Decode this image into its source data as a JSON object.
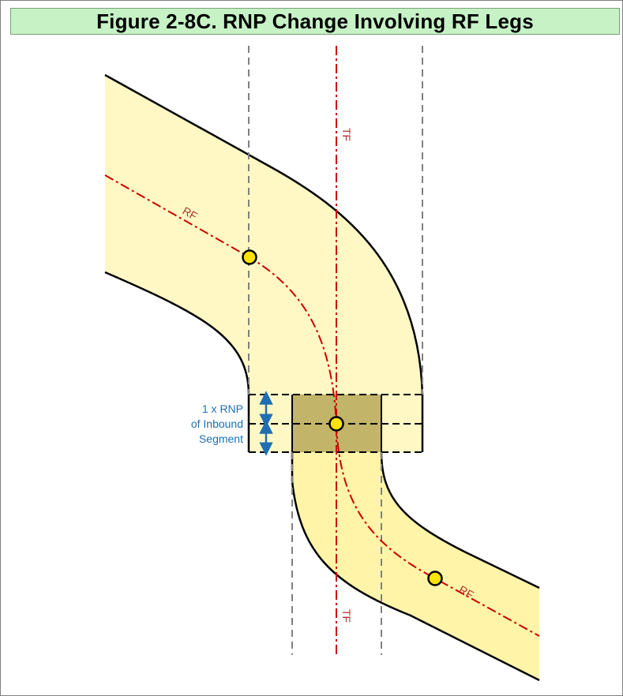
{
  "figure": {
    "title": "Figure 2-8C.  RNP Change Involving RF Legs",
    "labels": {
      "rf_upper": "RF",
      "rf_lower": "RF",
      "tf_upper": "TF",
      "tf_lower": "TF",
      "rnp_line1": "1 x RNP",
      "rnp_line2": "of Inbound",
      "rnp_line3": "Segment"
    },
    "colors": {
      "title_background": "#c6f2c6",
      "segment_fill": "#fff8c4",
      "segment_fill_lower": "#fff4a8",
      "overlap_fill": "#c2b468",
      "path_line": "#cc0000",
      "guide_line": "#808080",
      "fix_marker": "#ffe400",
      "rnp_arrow": "#1f6fb2"
    }
  }
}
